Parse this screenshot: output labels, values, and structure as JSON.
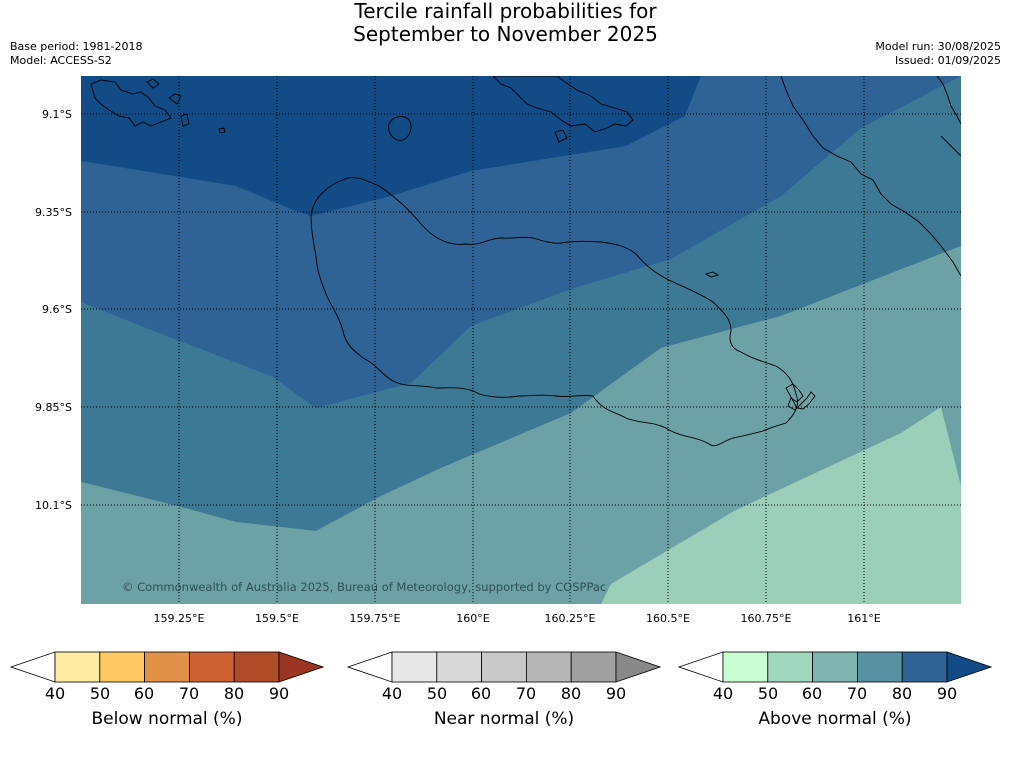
{
  "header": {
    "title_line1": "Tercile rainfall probabilities for",
    "title_line2": "September to November 2025",
    "base_period": "Base period: 1981-2018",
    "model": "Model: ACCESS-S2",
    "model_run": "Model run: 30/08/2025",
    "issued": "Issued: 01/09/2025"
  },
  "map": {
    "lat_labels": [
      "9.1°S",
      "9.35°S",
      "9.6°S",
      "9.85°S",
      "10.1°S"
    ],
    "lon_labels": [
      "159.25°E",
      "159.5°E",
      "159.75°E",
      "160°E",
      "160.25°E",
      "160.5°E",
      "160.75°E",
      "161°E"
    ],
    "copyright": "© Commonwealth of Australia 2025, Bureau of Meteorology, supported by COSPPac",
    "zone_colors": [
      "#124b86",
      "#2f6396",
      "#3d7895",
      "#6ca2a5",
      "#9ccfb9"
    ]
  },
  "colorbars": [
    {
      "label": "Below normal (%)",
      "ticks": [
        "40",
        "50",
        "60",
        "70",
        "80",
        "90"
      ],
      "colors": [
        "#ffffff",
        "#ffeca2",
        "#fec963",
        "#e09147",
        "#cc6233",
        "#b04b28",
        "#993520"
      ]
    },
    {
      "label": "Near normal (%)",
      "ticks": [
        "40",
        "50",
        "60",
        "70",
        "80",
        "90"
      ],
      "colors": [
        "#ffffff",
        "#e7e7e7",
        "#d9d9d9",
        "#c9c9c9",
        "#b6b6b6",
        "#a0a0a0",
        "#888888"
      ]
    },
    {
      "label": "Above normal (%)",
      "ticks": [
        "40",
        "50",
        "60",
        "70",
        "80",
        "90"
      ],
      "colors": [
        "#ffffff",
        "#cbfdd2",
        "#9fd8be",
        "#7fb4b0",
        "#5a91a2",
        "#2f6396",
        "#124b86"
      ]
    }
  ]
}
